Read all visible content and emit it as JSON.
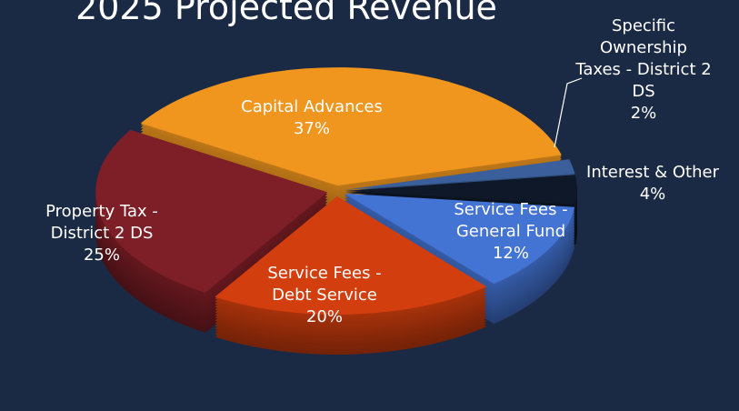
{
  "chart_data": {
    "type": "pie",
    "title": "2025 Projected Revenue",
    "categories": [
      "Capital Advances",
      "Specific Ownership Taxes - District 2 DS",
      "Interest & Other",
      "Service Fees - General Fund",
      "Service Fees - Debt Service",
      "Property Tax - District 2 DS"
    ],
    "values": [
      37,
      2,
      4,
      12,
      20,
      25
    ],
    "value_labels": [
      "37%",
      "2%",
      "4%",
      "12%",
      "20%",
      "25%"
    ],
    "colors": [
      "#f0961e",
      "#3a5f9a",
      "#0e1828",
      "#4373d3",
      "#d23e0e",
      "#7e1e26"
    ]
  }
}
